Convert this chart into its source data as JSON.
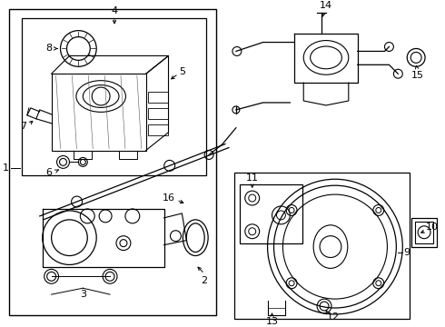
{
  "bg_color": "#ffffff",
  "line_color": "#000000",
  "figsize": [
    4.9,
    3.6
  ],
  "dpi": 100
}
